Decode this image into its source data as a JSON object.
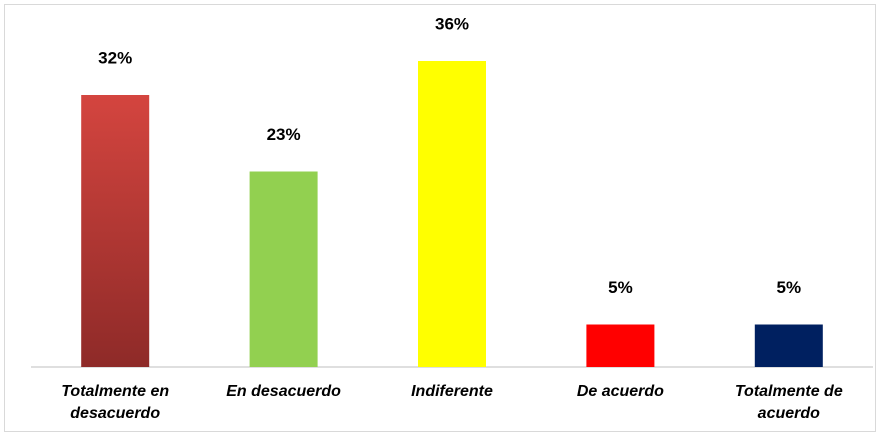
{
  "chart_data": {
    "type": "bar",
    "categories": [
      "Totalmente en desacuerdo",
      "En desacuerdo",
      "Indiferente",
      "De acuerdo",
      "Totalmente de acuerdo"
    ],
    "values": [
      32,
      23,
      36,
      5,
      5
    ],
    "value_labels": [
      "32%",
      "23%",
      "36%",
      "5%",
      "5%"
    ],
    "colors": [
      "#c23b36",
      "#92d050",
      "#ffff00",
      "#ff0000",
      "#002060"
    ]
  }
}
